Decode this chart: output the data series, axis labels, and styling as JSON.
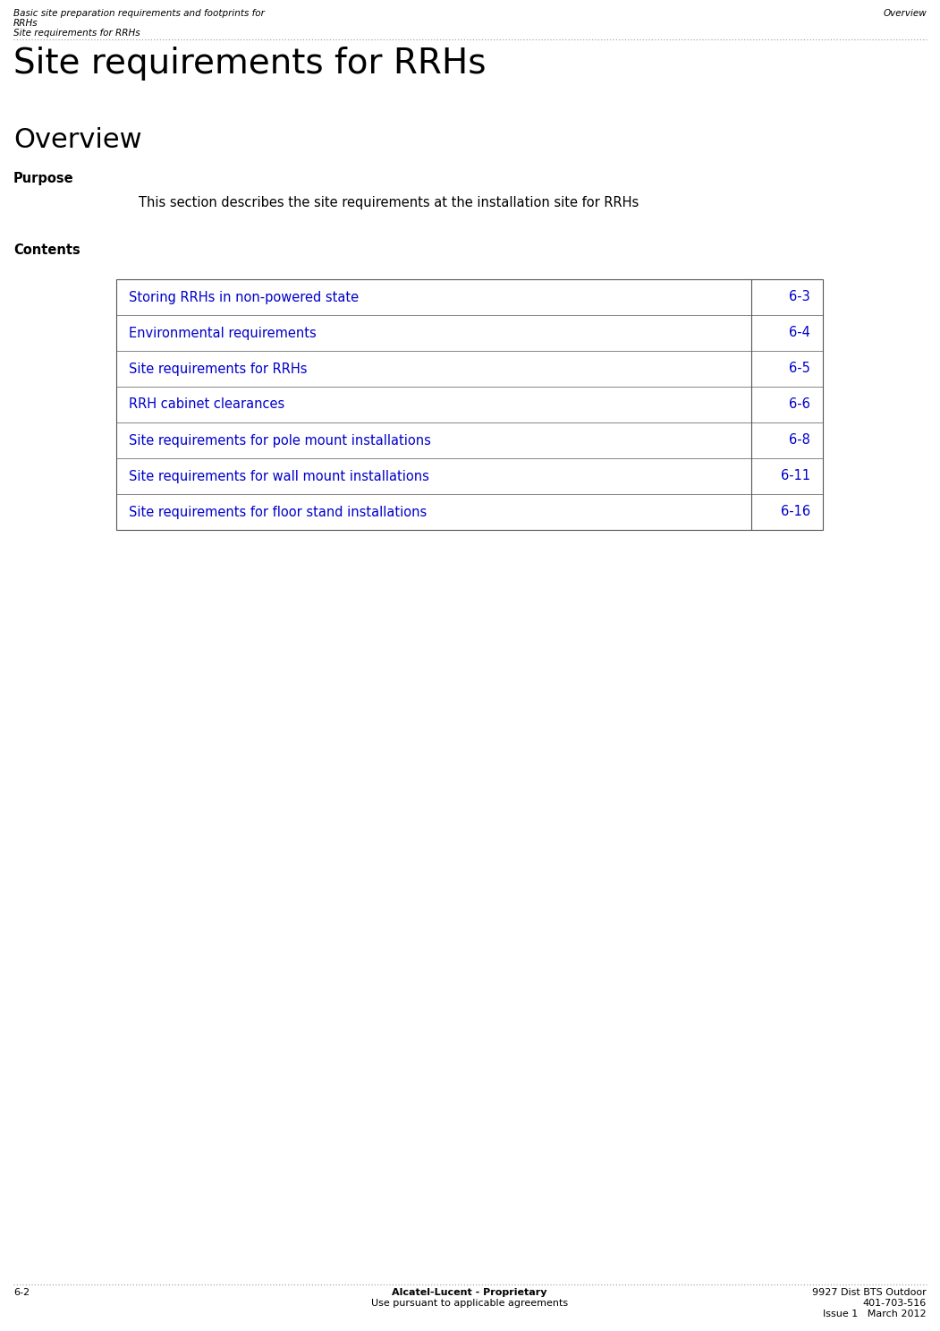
{
  "bg_color": "#ffffff",
  "header_left_line1": "Basic site preparation requirements and footprints for",
  "header_left_line2": "RRHs",
  "header_left_line3": "Site requirements for RRHs",
  "header_right": "Overview",
  "title": "Site requirements for RRHs",
  "section_overview": "Overview",
  "section_purpose_label": "Purpose",
  "section_purpose_text": "This section describes the site requirements at the installation site for RRHs",
  "section_contents_label": "Contents",
  "table_entries": [
    {
      "label": "Storing RRHs in non-powered state",
      "page": "6-3"
    },
    {
      "label": "Environmental requirements",
      "page": "6-4"
    },
    {
      "label": "Site requirements for RRHs",
      "page": "6-5"
    },
    {
      "label": "RRH cabinet clearances",
      "page": "6-6"
    },
    {
      "label": "Site requirements for pole mount installations",
      "page": "6-8"
    },
    {
      "label": "Site requirements for wall mount installations",
      "page": "6-11"
    },
    {
      "label": "Site requirements for floor stand installations",
      "page": "6-16"
    }
  ],
  "footer_left": "6-2",
  "footer_center_line1": "Alcatel-Lucent - Proprietary",
  "footer_center_line2": "Use pursuant to applicable agreements",
  "footer_right_line1": "9927 Dist BTS Outdoor",
  "footer_right_line2": "401-703-516",
  "footer_right_line3": "Issue 1   March 2012",
  "blue_color": "#0000cc",
  "black_color": "#000000",
  "header_font_size": 7.5,
  "title_font_size": 28,
  "overview_font_size": 22,
  "label_font_size": 10.5,
  "body_font_size": 10.5,
  "table_font_size": 10.5,
  "footer_font_size": 8,
  "dotted_line_color": "#999999"
}
